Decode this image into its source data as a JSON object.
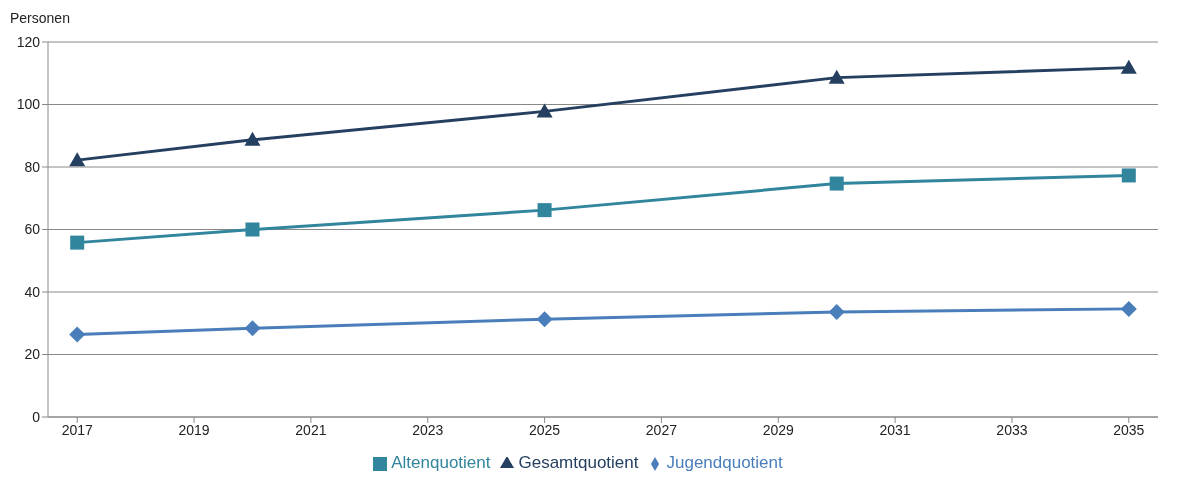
{
  "chart_data": {
    "type": "line",
    "ylabel": "Personen",
    "x": [
      2017,
      2020,
      2025,
      2030,
      2035
    ],
    "series": [
      {
        "name": "Jugendquotient",
        "color": "#4a7ebb",
        "marker": "diamond",
        "values": [
          26.4,
          28.4,
          31.3,
          33.6,
          34.6
        ]
      },
      {
        "name": "Altenquotient",
        "color": "#31859c",
        "marker": "square",
        "values": [
          55.8,
          60.0,
          66.2,
          74.7,
          77.3
        ]
      },
      {
        "name": "Gesamtquotient",
        "color": "#243f60",
        "marker": "triangle",
        "values": [
          82.2,
          88.7,
          97.8,
          108.6,
          111.8
        ]
      }
    ],
    "xlim": [
      2016.5,
      2035.5
    ],
    "xticks": [
      2017,
      2019,
      2021,
      2023,
      2025,
      2027,
      2029,
      2031,
      2033,
      2035
    ],
    "ylim": [
      0,
      120
    ],
    "yticks": [
      0,
      20,
      40,
      60,
      80,
      100,
      120
    ],
    "grid": "y",
    "legend": "bottom",
    "line_style": "solid"
  }
}
